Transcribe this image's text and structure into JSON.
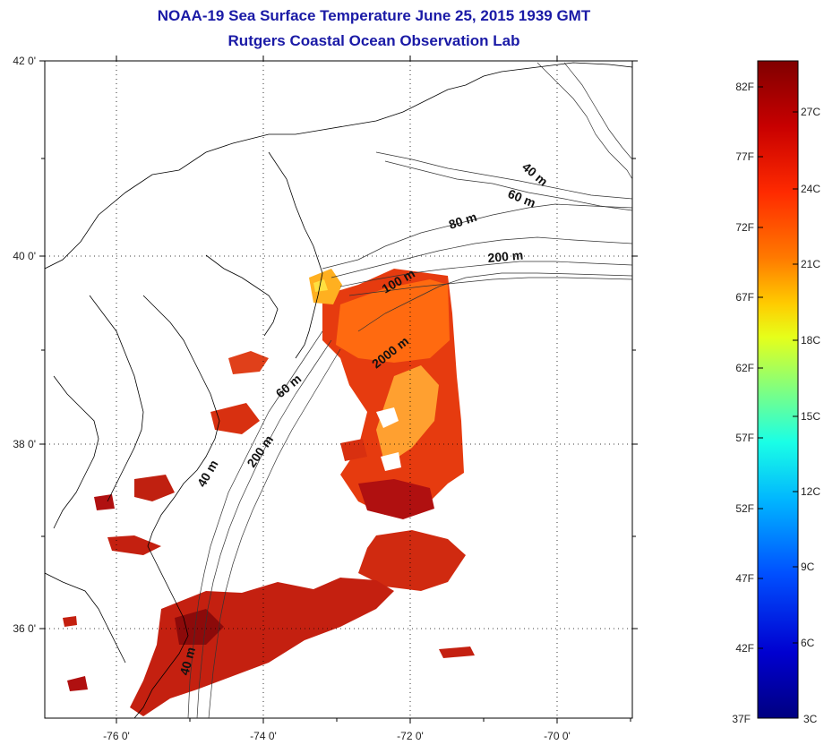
{
  "title": {
    "line1": "NOAA-19 Sea Surface Temperature June 25, 2015 1939 GMT",
    "line2": "Rutgers Coastal Ocean Observation Lab"
  },
  "lat_ticks": [
    "42 0'",
    "40 0'",
    "38 0'",
    "36 0'"
  ],
  "lon_ticks": [
    "-76 0'",
    "-74 0'",
    "-72 0'",
    "-70 0'"
  ],
  "contours": [
    {
      "label": "40 m"
    },
    {
      "label": "60 m"
    },
    {
      "label": "80 m"
    },
    {
      "label": "200 m"
    },
    {
      "label": "100 m"
    },
    {
      "label": "2000 m"
    },
    {
      "label": "60 m"
    },
    {
      "label": "200 m"
    },
    {
      "label": "40 m"
    },
    {
      "label": "40 m"
    }
  ],
  "colorbar": {
    "fahrenheit": [
      "82F",
      "77F",
      "72F",
      "67F",
      "62F",
      "57F",
      "52F",
      "47F",
      "42F",
      "37F"
    ],
    "celsius": [
      "27C",
      "24C",
      "21C",
      "18C",
      "15C",
      "12C",
      "9C",
      "6C",
      "3C"
    ],
    "colors": [
      "#800000",
      "#c80000",
      "#ff2a00",
      "#ff7a00",
      "#ffcc00",
      "#e6ff1a",
      "#80ff80",
      "#1affe6",
      "#00b4ff",
      "#0050ff",
      "#0000d0",
      "#000080"
    ]
  }
}
